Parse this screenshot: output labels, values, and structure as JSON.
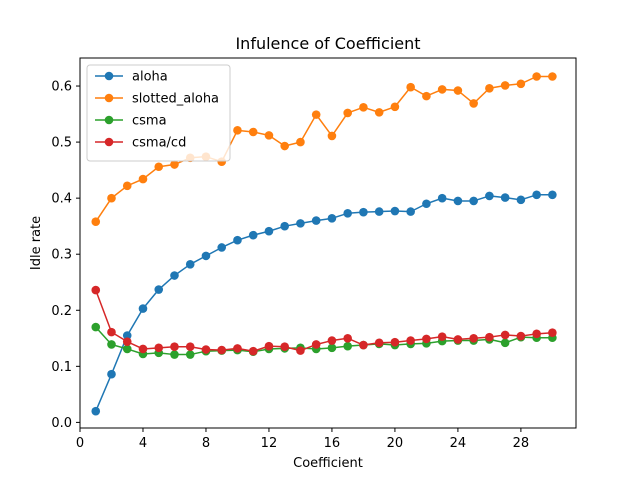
{
  "chart_data": {
    "type": "line",
    "title": "Infulence of Coefficient",
    "xlabel": "Coefficient",
    "ylabel": "Idle rate",
    "xlim": [
      0,
      31.5
    ],
    "ylim": [
      -0.01,
      0.65
    ],
    "xticks": [
      0,
      4,
      8,
      12,
      16,
      20,
      24,
      28
    ],
    "yticks": [
      0.0,
      0.1,
      0.2,
      0.3,
      0.4,
      0.5,
      0.6
    ],
    "grid": false,
    "legend": "top-left",
    "x": [
      1,
      2,
      3,
      4,
      5,
      6,
      7,
      8,
      9,
      10,
      11,
      12,
      13,
      14,
      15,
      16,
      17,
      18,
      19,
      20,
      21,
      22,
      23,
      24,
      25,
      26,
      27,
      28,
      29,
      30
    ],
    "series": [
      {
        "name": "aloha",
        "color": "#1f77b4",
        "values": [
          0.02,
          0.086,
          0.155,
          0.203,
          0.237,
          0.262,
          0.282,
          0.297,
          0.312,
          0.325,
          0.334,
          0.341,
          0.35,
          0.355,
          0.36,
          0.364,
          0.373,
          0.375,
          0.376,
          0.377,
          0.376,
          0.39,
          0.4,
          0.395,
          0.395,
          0.404,
          0.401,
          0.397,
          0.406,
          0.406
        ]
      },
      {
        "name": "slotted_aloha",
        "color": "#ff7f0e",
        "values": [
          0.358,
          0.4,
          0.422,
          0.434,
          0.456,
          0.46,
          0.472,
          0.474,
          0.465,
          0.521,
          0.518,
          0.512,
          0.493,
          0.5,
          0.549,
          0.511,
          0.552,
          0.562,
          0.553,
          0.563,
          0.598,
          0.582,
          0.594,
          0.592,
          0.569,
          0.596,
          0.601,
          0.604,
          0.617,
          0.617
        ]
      },
      {
        "name": "csma",
        "color": "#2ca02c",
        "values": [
          0.17,
          0.139,
          0.131,
          0.122,
          0.124,
          0.121,
          0.121,
          0.127,
          0.128,
          0.129,
          0.126,
          0.131,
          0.132,
          0.133,
          0.131,
          0.133,
          0.136,
          0.138,
          0.14,
          0.138,
          0.14,
          0.141,
          0.145,
          0.146,
          0.146,
          0.148,
          0.142,
          0.152,
          0.151,
          0.151
        ]
      },
      {
        "name": "csma/cd",
        "color": "#d62728",
        "values": [
          0.236,
          0.161,
          0.144,
          0.131,
          0.133,
          0.135,
          0.135,
          0.13,
          0.129,
          0.132,
          0.127,
          0.136,
          0.135,
          0.128,
          0.139,
          0.146,
          0.15,
          0.138,
          0.142,
          0.143,
          0.146,
          0.149,
          0.153,
          0.148,
          0.15,
          0.152,
          0.156,
          0.154,
          0.158,
          0.16
        ]
      }
    ]
  }
}
